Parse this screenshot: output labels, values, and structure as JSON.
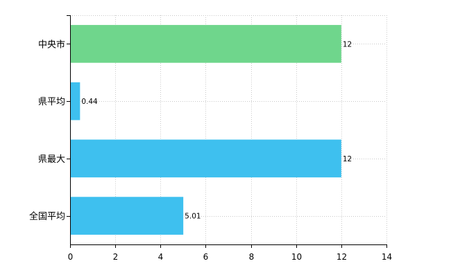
{
  "chart_data": {
    "type": "bar",
    "orientation": "horizontal",
    "categories": [
      "中央市",
      "県平均",
      "県最大",
      "全国平均"
    ],
    "values": [
      12,
      0.44,
      12,
      5.01
    ],
    "value_labels": [
      "12",
      "0.44",
      "12",
      "5.01"
    ],
    "bar_colors": [
      "#6fd68c",
      "#3ec0ef",
      "#3ec0ef",
      "#3ec0ef"
    ],
    "xlim": [
      0,
      14
    ],
    "xticks": [
      0,
      2,
      4,
      6,
      8,
      10,
      12,
      14
    ],
    "title": "",
    "xlabel": "",
    "ylabel": "",
    "grid": true,
    "grid_style": "dotted",
    "grid_color": "#c8c8c8",
    "axis_color": "#000000"
  }
}
